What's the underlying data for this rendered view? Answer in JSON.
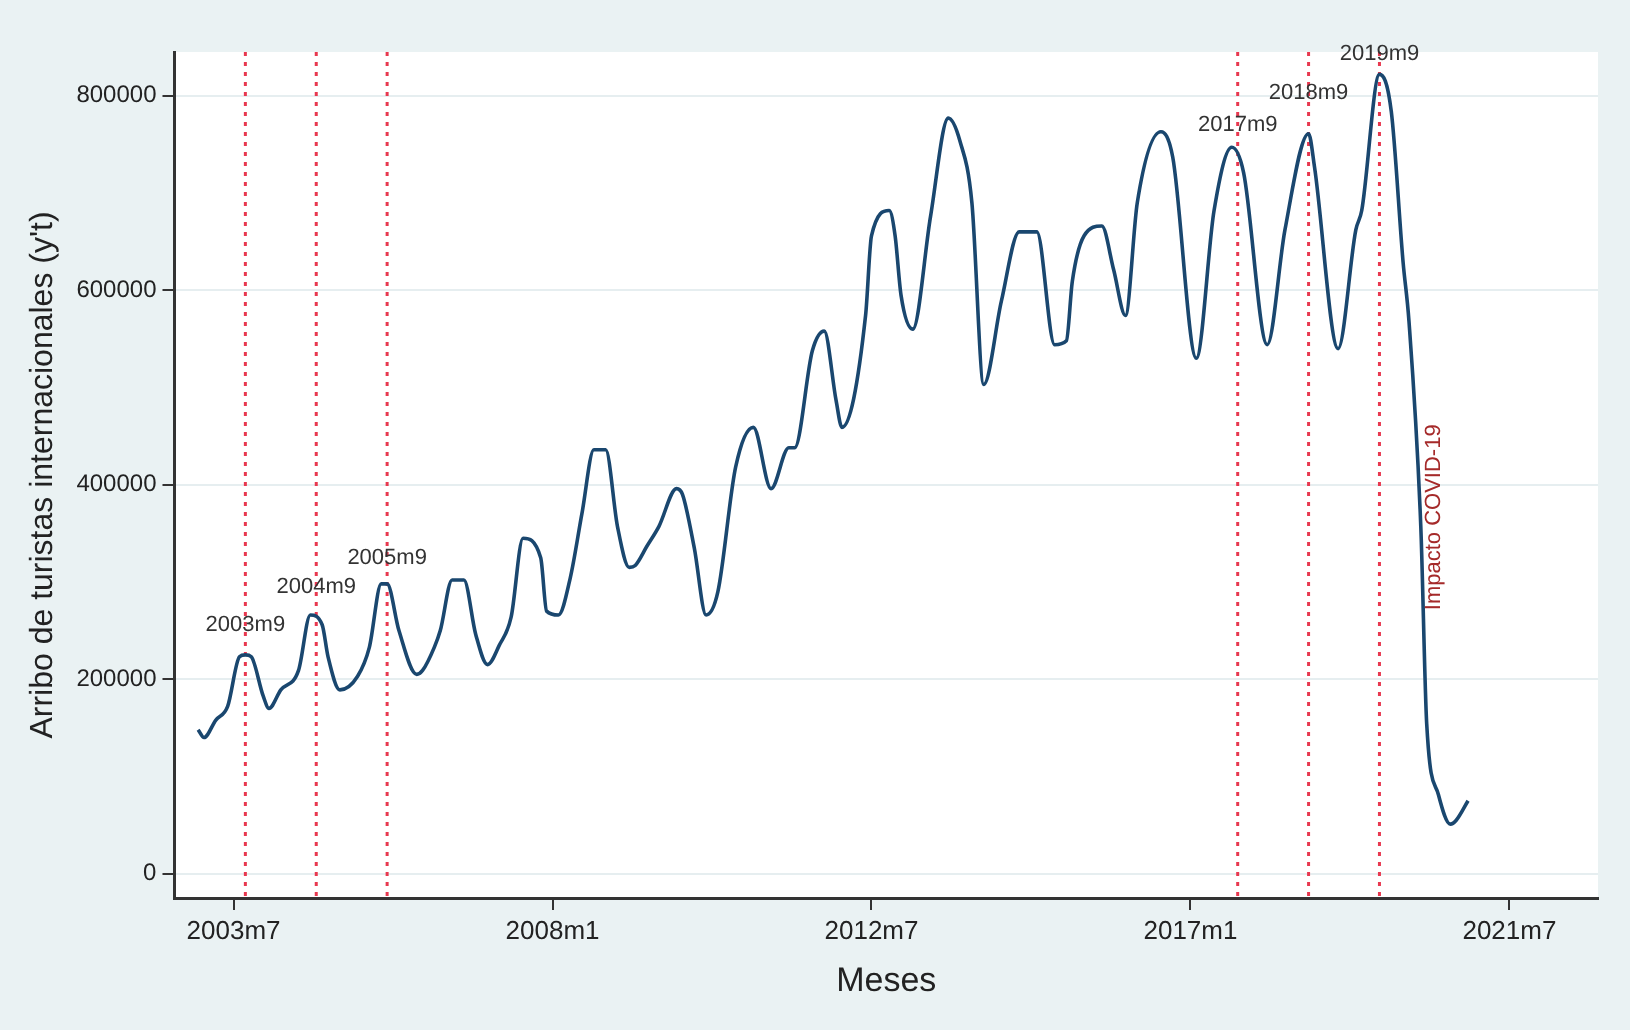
{
  "chart_data": {
    "type": "line",
    "xlabel": "Meses",
    "ylabel": "Arribo de turistas internacionales (y't)",
    "x": [
      "2003-01",
      "2003-02",
      "2003-04",
      "2003-06",
      "2003-08",
      "2003-09",
      "2003-10",
      "2003-12",
      "2004-01",
      "2004-03",
      "2004-06",
      "2004-08",
      "2004-10",
      "2004-11",
      "2005-01",
      "2005-04",
      "2005-06",
      "2005-08",
      "2005-09",
      "2005-11",
      "2006-02",
      "2006-03",
      "2006-05",
      "2006-06",
      "2006-08",
      "2006-10",
      "2006-12",
      "2007-02",
      "2007-04",
      "2007-06",
      "2007-08",
      "2007-11",
      "2007-12",
      "2008-02",
      "2008-04",
      "2008-06",
      "2008-08",
      "2008-10",
      "2008-12",
      "2009-02",
      "2009-03",
      "2009-05",
      "2009-07",
      "2009-10",
      "2009-11",
      "2010-01",
      "2010-03",
      "2010-05",
      "2010-08",
      "2010-11",
      "2011-02",
      "2011-05",
      "2011-06",
      "2011-09",
      "2011-11",
      "2012-01",
      "2012-02",
      "2012-06",
      "2012-07",
      "2012-10",
      "2012-11",
      "2012-12",
      "2013-02",
      "2013-05",
      "2013-08",
      "2013-10",
      "2013-12",
      "2014-02",
      "2014-05",
      "2014-08",
      "2014-11",
      "2015-02",
      "2015-04",
      "2015-05",
      "2015-07",
      "2015-10",
      "2015-12",
      "2016-02",
      "2016-04",
      "2016-08",
      "2016-10",
      "2017-02",
      "2017-05",
      "2017-08",
      "2017-10",
      "2018-02",
      "2018-05",
      "2018-09",
      "2018-10",
      "2019-02",
      "2019-05",
      "2019-06",
      "2019-09",
      "2019-11",
      "2020-01",
      "2020-02",
      "2020-04",
      "2020-05",
      "2020-07",
      "2020-09",
      "2020-10",
      "2020-12"
    ],
    "series": [
      {
        "color": "#1a476f",
        "values": [
          148000,
          140000,
          158000,
          172000,
          223000,
          225000,
          223000,
          183000,
          170000,
          189000,
          209000,
          266000,
          256000,
          223000,
          189000,
          203000,
          233000,
          298000,
          298000,
          250000,
          205000,
          209000,
          233000,
          250000,
          302000,
          302000,
          246000,
          215000,
          235000,
          264000,
          345000,
          325000,
          270000,
          266000,
          304000,
          371000,
          436000,
          436000,
          357000,
          315000,
          317000,
          337000,
          357000,
          396000,
          390000,
          335000,
          266000,
          290000,
          418000,
          459000,
          396000,
          438000,
          438000,
          538000,
          558000,
          487000,
          459000,
          574000,
          656000,
          682000,
          656000,
          595000,
          560000,
          676000,
          777000,
          753000,
          690000,
          503000,
          589000,
          660000,
          660000,
          544000,
          548000,
          609000,
          656000,
          666000,
          621000,
          574000,
          690000,
          763000,
          737000,
          530000,
          682000,
          747000,
          721000,
          544000,
          662000,
          761000,
          727000,
          540000,
          662000,
          682000,
          822000,
          784000,
          629000,
          568000,
          357000,
          154000,
          81000,
          51000,
          55000,
          75000
        ]
      }
    ],
    "xlim": [
      "2002-09",
      "2022-10"
    ],
    "xticks": [
      {
        "value": "2003-07",
        "label": "2003m7"
      },
      {
        "value": "2008-01",
        "label": "2008m1"
      },
      {
        "value": "2012-07",
        "label": "2012m7"
      },
      {
        "value": "2017-01",
        "label": "2017m1"
      },
      {
        "value": "2021-07",
        "label": "2021m7"
      }
    ],
    "ylim": [
      -25000,
      845000
    ],
    "yticks": [
      0,
      200000,
      400000,
      600000,
      800000
    ],
    "grid": "y",
    "legend": false,
    "marker": "none",
    "line_style": "solid",
    "ref_lines": [
      {
        "axis": "x",
        "value": "2003-09",
        "color": "#e8384f",
        "line_style": "dotted"
      },
      {
        "axis": "x",
        "value": "2004-09",
        "color": "#e8384f",
        "line_style": "dotted"
      },
      {
        "axis": "x",
        "value": "2005-09",
        "color": "#e8384f",
        "line_style": "dotted"
      },
      {
        "axis": "x",
        "value": "2017-09",
        "color": "#e8384f",
        "line_style": "dotted"
      },
      {
        "axis": "x",
        "value": "2018-09",
        "color": "#e8384f",
        "line_style": "dotted"
      },
      {
        "axis": "x",
        "value": "2019-09",
        "color": "#e8384f",
        "line_style": "dotted"
      }
    ],
    "annotations": [
      {
        "text": "2003m9",
        "x": "2003-09",
        "y": 244000
      },
      {
        "text": "2004m9",
        "x": "2004-09",
        "y": 284000
      },
      {
        "text": "2005m9",
        "x": "2005-09",
        "y": 313000
      },
      {
        "text": "2017m9",
        "x": "2017-09",
        "y": 759000
      },
      {
        "text": "2018m9",
        "x": "2018-09",
        "y": 792000
      },
      {
        "text": "2019m9",
        "x": "2019-09",
        "y": 832000
      },
      "Impacto COVID-19"
    ]
  }
}
